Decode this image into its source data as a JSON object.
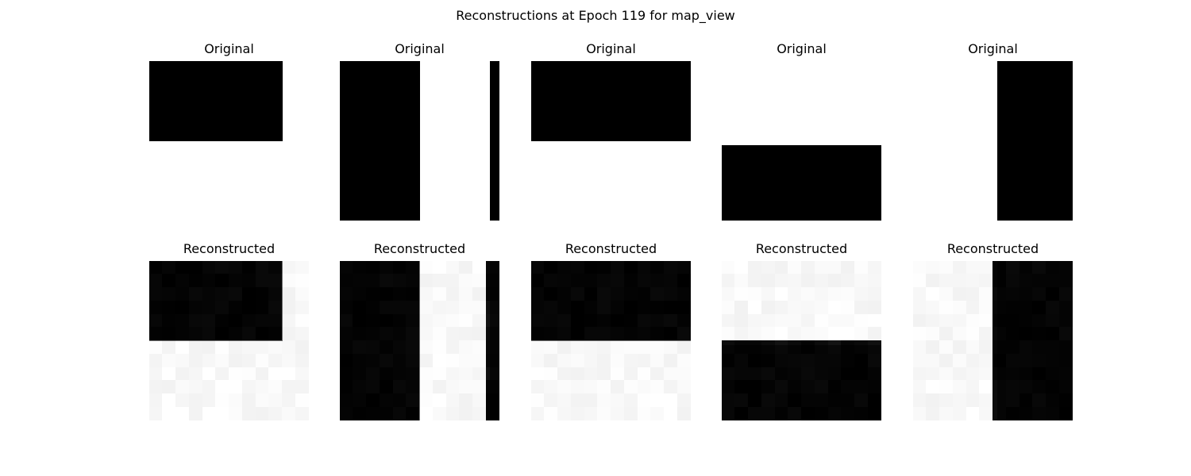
{
  "figure": {
    "title": "Reconstructions at Epoch 119 for map_view",
    "grid_size": 12
  },
  "rows": [
    {
      "label": "Original",
      "kind": "original"
    },
    {
      "label": "Reconstructed",
      "kind": "reconstructed"
    }
  ],
  "samples": [
    {
      "shapes": [
        {
          "col0": 0,
          "row0": 0,
          "col1": 10,
          "row1": 6
        }
      ]
    },
    {
      "shapes": [
        {
          "col0": 0,
          "row0": 0,
          "col1": 6,
          "row1": 12
        },
        {
          "col0": 11.3,
          "row0": 0,
          "col1": 12,
          "row1": 12
        }
      ]
    },
    {
      "shapes": [
        {
          "col0": 0,
          "row0": 0,
          "col1": 12,
          "row1": 6
        }
      ]
    },
    {
      "shapes": [
        {
          "col0": 0,
          "row0": 6.3,
          "col1": 12,
          "row1": 12
        }
      ]
    },
    {
      "shapes": [
        {
          "col0": 6.3,
          "row0": 0,
          "col1": 12,
          "row1": 12
        }
      ]
    }
  ],
  "colors": {
    "shape": "#000000",
    "background": "#ffffff"
  }
}
